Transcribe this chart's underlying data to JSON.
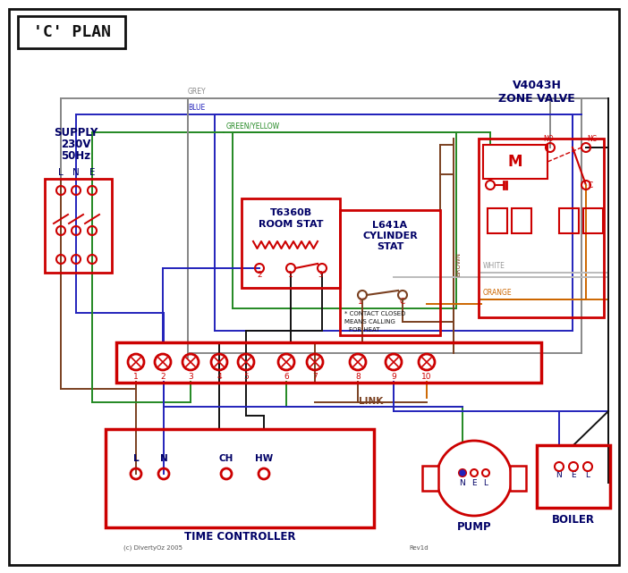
{
  "bg_color": "#ffffff",
  "red": "#cc0000",
  "blue": "#2222bb",
  "green": "#228822",
  "grey": "#888888",
  "brown": "#7a4020",
  "orange": "#cc6600",
  "black": "#111111",
  "dark_blue": "#000066",
  "title": "'C' PLAN",
  "supply_text1": "SUPPLY",
  "supply_text2": "230V",
  "supply_text3": "50Hz",
  "room_stat_line1": "T6360B",
  "room_stat_line2": "ROOM STAT",
  "cyl_stat_line1": "L641A",
  "cyl_stat_line2": "CYLINDER",
  "cyl_stat_line3": "STAT",
  "zone_valve_line1": "V4043H",
  "zone_valve_line2": "ZONE VALVE",
  "time_controller_label": "TIME CONTROLLER",
  "pump_label": "PUMP",
  "boiler_label": "BOILER",
  "link_label": "LINK",
  "copyright": "(c) DivertyOz 2005",
  "rev": "Rev1d"
}
